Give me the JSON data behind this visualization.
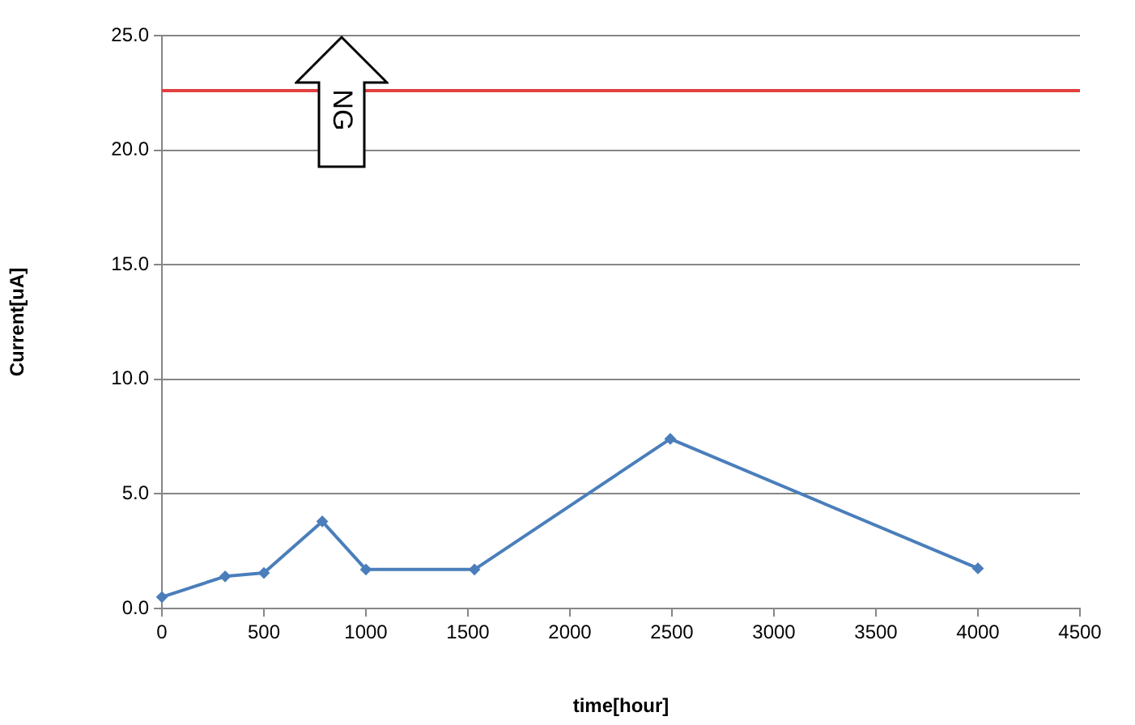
{
  "chart_data": {
    "type": "line",
    "xlabel": "time[hour]",
    "ylabel": "Current[uA]",
    "x": [
      0,
      310,
      500,
      786,
      1000,
      1532,
      2492,
      4000
    ],
    "series": [
      {
        "color": "#4a7ebb",
        "values": [
          0.5,
          1.4,
          1.55,
          3.8,
          1.7,
          1.7,
          7.4,
          1.75
        ]
      }
    ],
    "xlim": [
      0,
      4500
    ],
    "xticks": [
      0,
      500,
      1000,
      1500,
      2000,
      2500,
      3000,
      3500,
      4000,
      4500
    ],
    "ylim": [
      0,
      25
    ],
    "yticks": [
      {
        "value": 0,
        "label": "0.0"
      },
      {
        "value": 5,
        "label": "5.0"
      },
      {
        "value": 10,
        "label": "10.0"
      },
      {
        "value": 15,
        "label": "15.0"
      },
      {
        "value": 20,
        "label": "20.0"
      },
      {
        "value": 25,
        "label": "25.0"
      }
    ],
    "ref_lines": [
      {
        "axis": "y",
        "value": 22.6,
        "color": "#e0403f"
      }
    ],
    "annotations": [
      "NG"
    ],
    "grid": "y",
    "marker": "diamond",
    "line_style": "solid",
    "legend": false
  }
}
